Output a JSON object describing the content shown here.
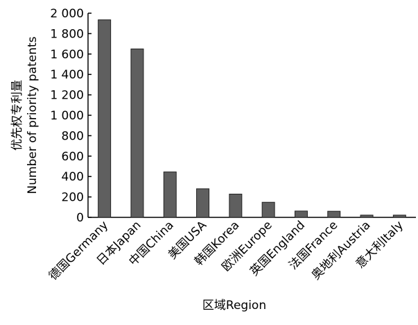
{
  "chart_data": {
    "type": "bar",
    "x_label": "区域Region",
    "y_label_lines": [
      "优先权专利量",
      "Number of priority patents"
    ],
    "categories": [
      "德国Germany",
      "日本Japan",
      "中国China",
      "美国USA",
      "韩国Korea",
      "欧洲Europe",
      "英国England",
      "法国France",
      "奥地利Austria",
      "意大利Italy"
    ],
    "values": [
      1935,
      1650,
      445,
      280,
      228,
      148,
      62,
      60,
      22,
      22
    ],
    "color": "#5f5f5f",
    "ylim": [
      0,
      2000
    ],
    "yticks": [
      0,
      200,
      400,
      600,
      800,
      {
        "value": 1000,
        "label": "1 000"
      },
      {
        "value": 1200,
        "label": "1 200"
      },
      {
        "value": 1400,
        "label": "1 400"
      },
      {
        "value": 1600,
        "label": "1 600"
      },
      {
        "value": 1800,
        "label": "1 800"
      },
      {
        "value": 2000,
        "label": "2 000"
      }
    ]
  }
}
